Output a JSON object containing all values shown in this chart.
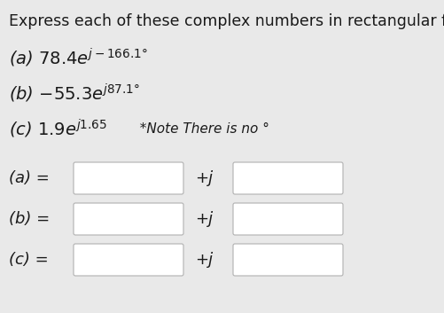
{
  "title": "Express each of these complex numbers in rectangular form",
  "title_fontsize": 12.5,
  "background_color": "#e9e9e9",
  "text_color": "#1a1a1a",
  "line_a_prefix": "(a) 78.4",
  "line_a_sup": "j-166.1°",
  "line_b_prefix": "(b) −55.3",
  "line_b_sup": "j87.1°",
  "line_c_prefix": "(c) 1.9",
  "line_c_sup": "j1.65",
  "line_c_note": "  *Note There is no °",
  "box_label_a": "(a) =",
  "box_label_b": "(b) =",
  "box_label_c": "(c) =",
  "plus_j": "+j",
  "font_family": "DejaVu Sans",
  "expr_fontsize": 14,
  "sup_fontsize": 9,
  "label_fontsize": 13,
  "note_fontsize": 11
}
